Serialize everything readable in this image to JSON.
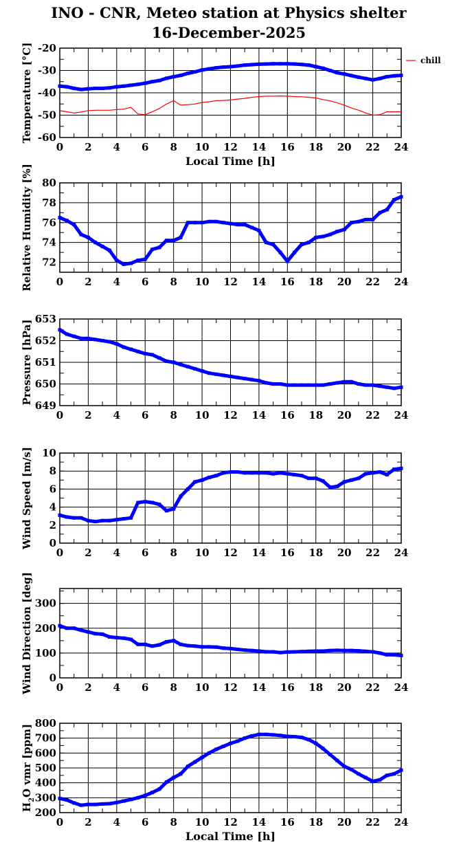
{
  "title": [
    "INO - CNR, Meteo station at Physics shelter",
    "16-December-2025"
  ],
  "colors": {
    "main": "#0000ff",
    "chill": "#ff0000",
    "grid": "#000000"
  },
  "chart_data": [
    {
      "type": "line",
      "id": "temperature",
      "ylabel": "Temperature [°C]",
      "xlabel": "Local Time [h]",
      "xlim": [
        0,
        24
      ],
      "xticks": [
        0,
        2,
        4,
        6,
        8,
        10,
        12,
        14,
        16,
        18,
        20,
        22,
        24
      ],
      "ylim": [
        -60,
        -20
      ],
      "yticks": [
        -60,
        -50,
        -40,
        -30,
        -20
      ],
      "yminor": 5,
      "grid": true,
      "legend": {
        "placement": "outside-right",
        "entries": [
          "chill"
        ]
      },
      "x": [
        0,
        0.5,
        1,
        1.5,
        2,
        2.5,
        3,
        3.5,
        4,
        4.5,
        5,
        5.5,
        6,
        6.5,
        7,
        7.5,
        8,
        8.5,
        9,
        9.5,
        10,
        10.5,
        11,
        11.5,
        12,
        12.5,
        13,
        13.5,
        14,
        14.5,
        15,
        15.5,
        16,
        16.5,
        17,
        17.5,
        18,
        18.5,
        19,
        19.5,
        20,
        20.5,
        21,
        21.5,
        22,
        22.5,
        23,
        23.5,
        24
      ],
      "series": [
        {
          "name": "temperature",
          "color": "#0000ff",
          "values": [
            -37,
            -37.3,
            -38,
            -38.5,
            -38.2,
            -38,
            -38,
            -37.8,
            -37.3,
            -37,
            -36.6,
            -36.2,
            -35.7,
            -35,
            -34.5,
            -33.5,
            -32.8,
            -32.2,
            -31.3,
            -30.6,
            -29.8,
            -29.3,
            -28.8,
            -28.5,
            -28.3,
            -28,
            -27.6,
            -27.4,
            -27.2,
            -27.1,
            -27,
            -27,
            -27,
            -27.1,
            -27.3,
            -27.6,
            -28.3,
            -29,
            -30,
            -31,
            -31.6,
            -32.3,
            -33,
            -33.6,
            -34.2,
            -33.6,
            -32.8,
            -32.4,
            -32.2
          ]
        },
        {
          "name": "chill",
          "color": "#ff0000",
          "values": [
            -48,
            -48.5,
            -49,
            -48.6,
            -48,
            -47.8,
            -47.8,
            -47.8,
            -47.5,
            -47.3,
            -46.5,
            -49.5,
            -49.8,
            -48.5,
            -47,
            -45,
            -43.5,
            -45.5,
            -45.3,
            -45,
            -44.3,
            -44,
            -43.5,
            -43.4,
            -43.2,
            -42.8,
            -42.5,
            -42,
            -41.7,
            -41.5,
            -41.5,
            -41.4,
            -41.5,
            -41.7,
            -41.8,
            -42,
            -42.3,
            -43,
            -43.6,
            -44.5,
            -45.5,
            -46.8,
            -47.8,
            -49,
            -50,
            -49.8,
            -48.5,
            -48.5,
            -48.5
          ]
        }
      ]
    },
    {
      "type": "line",
      "id": "humidity",
      "ylabel": "Relative Humidity [%]",
      "xlim": [
        0,
        24
      ],
      "xticks": [
        0,
        2,
        4,
        6,
        8,
        10,
        12,
        14,
        16,
        18,
        20,
        22,
        24
      ],
      "ylim": [
        71,
        80
      ],
      "yticks": [
        72,
        74,
        76,
        78,
        80
      ],
      "yminor": 1,
      "grid": true,
      "x": [
        0,
        0.5,
        1,
        1.5,
        2,
        2.5,
        3,
        3.5,
        4,
        4.5,
        5,
        5.5,
        6,
        6.5,
        7,
        7.5,
        8,
        8.5,
        9,
        9.5,
        10,
        10.5,
        11,
        11.5,
        12,
        12.5,
        13,
        13.5,
        14,
        14.5,
        15,
        15.5,
        16,
        16.5,
        17,
        17.5,
        18,
        18.5,
        19,
        19.5,
        20,
        20.5,
        21,
        21.5,
        22,
        22.5,
        23,
        23.5,
        24
      ],
      "series": [
        {
          "name": "relative-humidity",
          "color": "#0000ff",
          "values": [
            76.5,
            76.2,
            75.8,
            74.8,
            74.5,
            74,
            73.6,
            73.2,
            72.2,
            71.8,
            71.9,
            72.2,
            72.3,
            73.3,
            73.5,
            74.2,
            74.2,
            74.5,
            76,
            76,
            76,
            76.1,
            76.1,
            76,
            75.9,
            75.8,
            75.8,
            75.5,
            75.2,
            74,
            73.8,
            73,
            72.1,
            73,
            73.8,
            74,
            74.5,
            74.6,
            74.8,
            75.1,
            75.3,
            76,
            76.1,
            76.3,
            76.3,
            77,
            77.3,
            78.3,
            78.6
          ]
        }
      ]
    },
    {
      "type": "line",
      "id": "pressure",
      "ylabel": "Pressure [hPa]",
      "xlim": [
        0,
        24
      ],
      "xticks": [
        0,
        2,
        4,
        6,
        8,
        10,
        12,
        14,
        16,
        18,
        20,
        22,
        24
      ],
      "ylim": [
        649,
        653
      ],
      "yticks": [
        649,
        650,
        651,
        652,
        653
      ],
      "yminor": 0.5,
      "grid": true,
      "x": [
        0,
        0.5,
        1,
        1.5,
        2,
        2.5,
        3,
        3.5,
        4,
        4.5,
        5,
        5.5,
        6,
        6.5,
        7,
        7.5,
        8,
        8.5,
        9,
        9.5,
        10,
        10.5,
        11,
        11.5,
        12,
        12.5,
        13,
        13.5,
        14,
        14.5,
        15,
        15.5,
        16,
        16.5,
        17,
        17.5,
        18,
        18.5,
        19,
        19.5,
        20,
        20.5,
        21,
        21.5,
        22,
        22.5,
        23,
        23.5,
        24
      ],
      "series": [
        {
          "name": "pressure",
          "color": "#0000ff",
          "values": [
            652.5,
            652.3,
            652.2,
            652.1,
            652.1,
            652.05,
            652,
            651.95,
            651.85,
            651.7,
            651.6,
            651.5,
            651.4,
            651.35,
            651.2,
            651.05,
            651,
            650.9,
            650.8,
            650.7,
            650.6,
            650.5,
            650.45,
            650.4,
            650.35,
            650.3,
            650.25,
            650.2,
            650.15,
            650.05,
            650,
            650,
            649.95,
            649.95,
            649.95,
            649.95,
            649.95,
            649.95,
            650,
            650.05,
            650.1,
            650.1,
            650,
            649.95,
            649.95,
            649.9,
            649.85,
            649.8,
            649.85
          ]
        }
      ]
    },
    {
      "type": "line",
      "id": "wind-speed",
      "ylabel": "Wind Speed [m/s]",
      "xlim": [
        0,
        24
      ],
      "xticks": [
        0,
        2,
        4,
        6,
        8,
        10,
        12,
        14,
        16,
        18,
        20,
        22,
        24
      ],
      "ylim": [
        0,
        10
      ],
      "yticks": [
        0,
        2,
        4,
        6,
        8,
        10
      ],
      "yminor": 1,
      "grid": true,
      "x": [
        0,
        0.5,
        1,
        1.5,
        2,
        2.5,
        3,
        3.5,
        4,
        4.5,
        5,
        5.5,
        6,
        6.5,
        7,
        7.5,
        8,
        8.5,
        9,
        9.5,
        10,
        10.5,
        11,
        11.5,
        12,
        12.5,
        13,
        13.5,
        14,
        14.5,
        15,
        15.5,
        16,
        16.5,
        17,
        17.5,
        18,
        18.5,
        19,
        19.5,
        20,
        20.5,
        21,
        21.5,
        22,
        22.5,
        23,
        23.5,
        24
      ],
      "series": [
        {
          "name": "wind-speed",
          "color": "#0000ff",
          "values": [
            3.1,
            2.9,
            2.8,
            2.8,
            2.5,
            2.4,
            2.5,
            2.5,
            2.6,
            2.7,
            2.8,
            4.5,
            4.6,
            4.5,
            4.3,
            3.6,
            3.8,
            5.2,
            6,
            6.8,
            7,
            7.3,
            7.5,
            7.8,
            7.9,
            7.9,
            7.8,
            7.8,
            7.8,
            7.8,
            7.7,
            7.8,
            7.7,
            7.6,
            7.5,
            7.2,
            7.2,
            6.9,
            6.2,
            6.3,
            6.8,
            7,
            7.2,
            7.7,
            7.8,
            7.9,
            7.6,
            8.2,
            8.3
          ]
        }
      ]
    },
    {
      "type": "line",
      "id": "wind-direction",
      "ylabel": "Wind Direction [deg]",
      "xlim": [
        0,
        24
      ],
      "xticks": [
        0,
        2,
        4,
        6,
        8,
        10,
        12,
        14,
        16,
        18,
        20,
        22,
        24
      ],
      "ylim": [
        0,
        360
      ],
      "yticks": [
        0,
        100,
        200,
        300
      ],
      "yminor": 50,
      "grid": true,
      "x": [
        0,
        0.5,
        1,
        1.5,
        2,
        2.5,
        3,
        3.5,
        4,
        4.5,
        5,
        5.5,
        6,
        6.5,
        7,
        7.5,
        8,
        8.5,
        9,
        9.5,
        10,
        10.5,
        11,
        11.5,
        12,
        12.5,
        13,
        13.5,
        14,
        14.5,
        15,
        15.5,
        16,
        16.5,
        17,
        17.5,
        18,
        18.5,
        19,
        19.5,
        20,
        20.5,
        21,
        21.5,
        22,
        22.5,
        23,
        23.5,
        24
      ],
      "series": [
        {
          "name": "wind-direction",
          "color": "#0000ff",
          "values": [
            210,
            200,
            200,
            192,
            185,
            178,
            176,
            165,
            162,
            160,
            155,
            135,
            135,
            128,
            133,
            145,
            150,
            135,
            130,
            128,
            125,
            125,
            124,
            120,
            118,
            115,
            112,
            110,
            108,
            105,
            105,
            102,
            104,
            105,
            106,
            107,
            108,
            108,
            110,
            111,
            110,
            110,
            109,
            107,
            105,
            100,
            93,
            93,
            90
          ]
        }
      ]
    },
    {
      "type": "line",
      "id": "h2o-vmr",
      "ylabel_parts": [
        "H",
        "2",
        "O vmr [ppm]"
      ],
      "xlabel": "Local Time [h]",
      "xlim": [
        0,
        24
      ],
      "xticks": [
        0,
        2,
        4,
        6,
        8,
        10,
        12,
        14,
        16,
        18,
        20,
        22,
        24
      ],
      "ylim": [
        200,
        800
      ],
      "yticks": [
        200,
        300,
        400,
        500,
        600,
        700,
        800
      ],
      "yminor": 50,
      "grid": true,
      "x": [
        0,
        0.5,
        1,
        1.5,
        2,
        2.5,
        3,
        3.5,
        4,
        4.5,
        5,
        5.5,
        6,
        6.5,
        7,
        7.5,
        8,
        8.5,
        9,
        9.5,
        10,
        10.5,
        11,
        11.5,
        12,
        12.5,
        13,
        13.5,
        14,
        14.5,
        15,
        15.5,
        16,
        16.5,
        17,
        17.5,
        18,
        18.5,
        19,
        19.5,
        20,
        20.5,
        21,
        21.5,
        22,
        22.5,
        23,
        23.5,
        24
      ],
      "series": [
        {
          "name": "h2o-vmr",
          "color": "#0000ff",
          "values": [
            295,
            285,
            265,
            250,
            255,
            255,
            258,
            260,
            268,
            278,
            288,
            300,
            315,
            335,
            358,
            405,
            435,
            460,
            510,
            540,
            570,
            600,
            625,
            645,
            665,
            680,
            700,
            715,
            725,
            725,
            722,
            718,
            712,
            710,
            705,
            690,
            665,
            630,
            590,
            550,
            510,
            490,
            460,
            435,
            410,
            420,
            450,
            460,
            485
          ]
        }
      ]
    }
  ]
}
